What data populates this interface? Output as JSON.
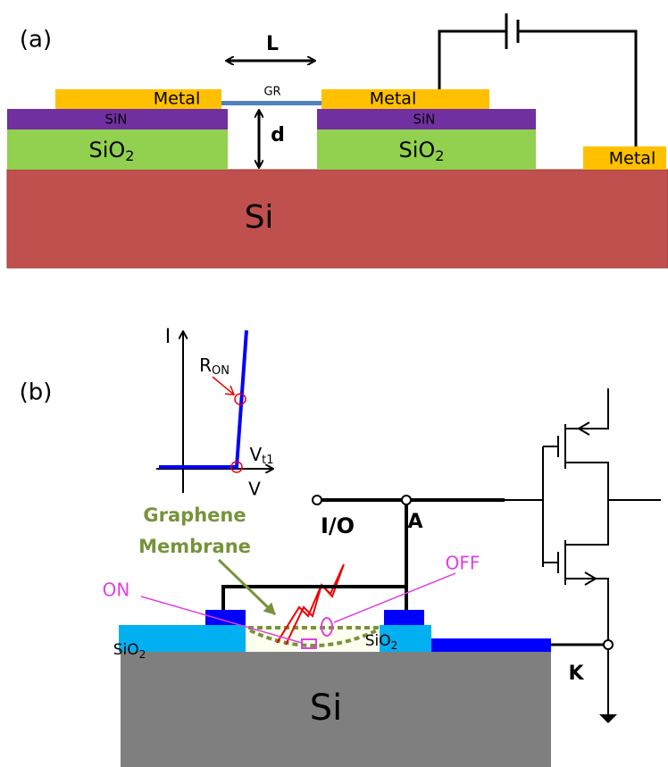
{
  "panel_a": {
    "label": "(a)",
    "length_label": "L",
    "gap_label": "d",
    "graphene_label": "GR",
    "metal_labels": [
      "Metal",
      "Metal",
      "Metal"
    ],
    "sin_labels": [
      "SiN",
      "SiN"
    ],
    "sio2_labels": [
      {
        "main": "SiO",
        "sub": "2"
      },
      {
        "main": "SiO",
        "sub": "2"
      }
    ],
    "substrate_label": "Si"
  },
  "panel_b": {
    "label": "(b)",
    "iv_inset": {
      "y_axis_label": "I",
      "x_axis_label": "V",
      "on_resistance_label": {
        "main": "R",
        "sub": "ON"
      },
      "threshold_label": {
        "main": "V",
        "sub": "t1"
      }
    },
    "membrane_label": [
      "Graphene",
      "Membrane"
    ],
    "io_label": "I/O",
    "anode_label": "A",
    "off_label": "OFF",
    "on_label": "ON",
    "sio2_labels": [
      {
        "main": "SiO",
        "sub": "2"
      },
      {
        "main": "SiO",
        "sub": "2"
      }
    ],
    "cathode_label": "K",
    "substrate_label": "Si"
  }
}
